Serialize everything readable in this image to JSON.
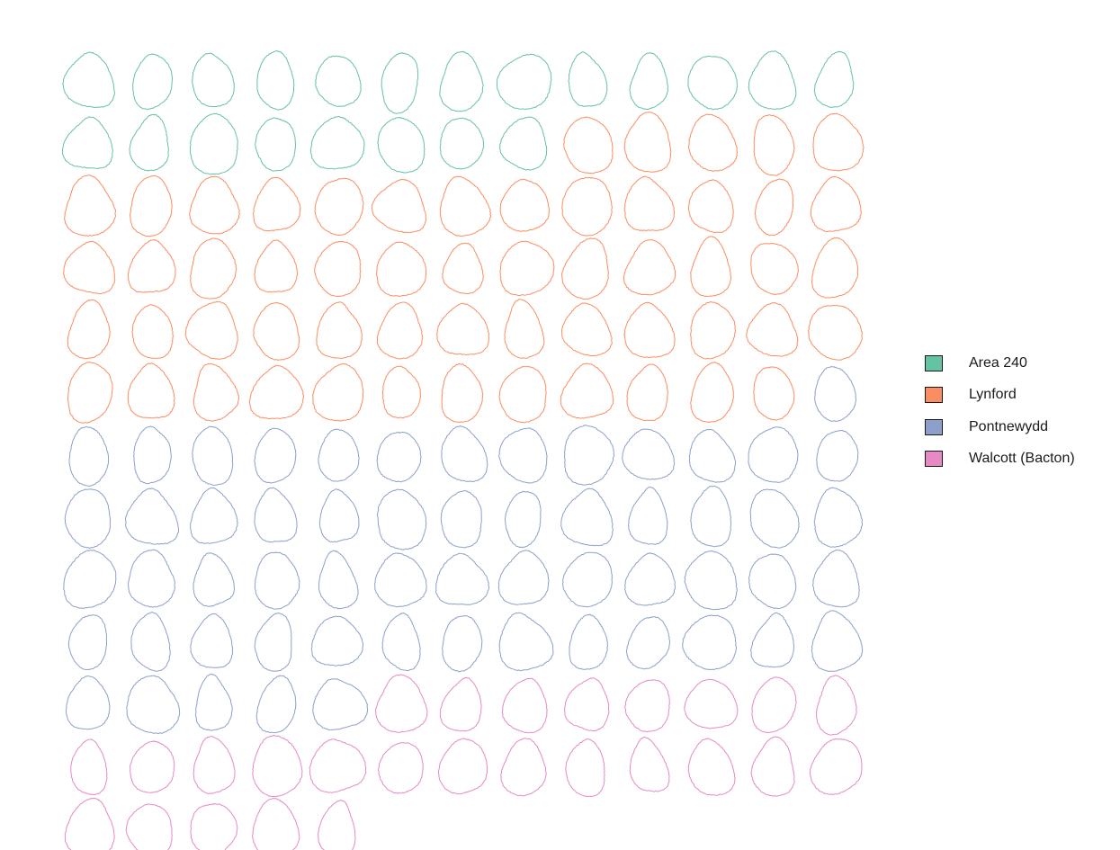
{
  "chart_data": {
    "type": "outline-grid",
    "columns": 13,
    "legend": [
      {
        "name": "Area 240",
        "color": "#66c2a5"
      },
      {
        "name": "Lynford",
        "color": "#fc8d62"
      },
      {
        "name": "Pontnewydd",
        "color": "#8da0cb"
      },
      {
        "name": "Walcott (Bacton)",
        "color": "#e78ac3"
      }
    ],
    "groups": [
      {
        "name": "Area 240",
        "color": "#66c2a5",
        "count": 21
      },
      {
        "name": "Lynford",
        "color": "#fc8d62",
        "count": 56
      },
      {
        "name": "Pontnewydd",
        "color": "#8da0cb",
        "count": 58
      },
      {
        "name": "Walcott (Bacton)",
        "color": "#e78ac3",
        "count": 26
      }
    ],
    "total_outlines": 161
  }
}
